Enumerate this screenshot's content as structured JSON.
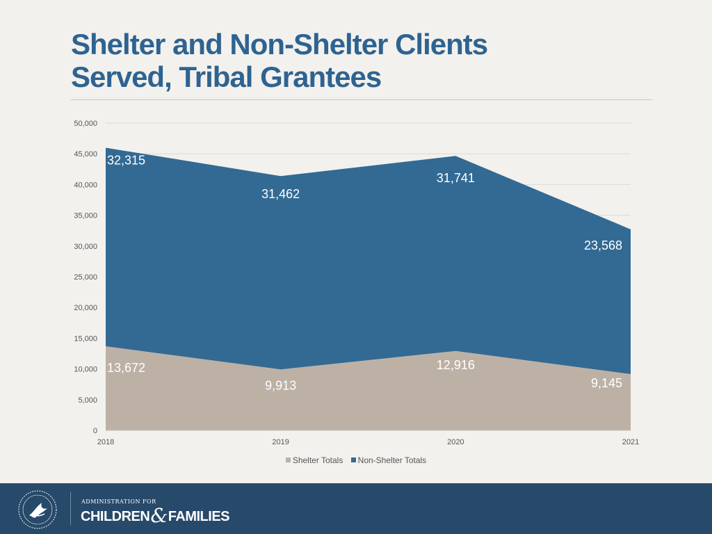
{
  "title": {
    "line1": "Shelter and Non-Shelter Clients",
    "line2": "Served, Tribal Grantees"
  },
  "colors": {
    "shelter": "#bdb1a6",
    "non_shelter": "#336a93",
    "title": "#2e6391",
    "footer": "#27496a"
  },
  "chart_data": {
    "type": "area",
    "stacked": true,
    "title": "Shelter and Non-Shelter Clients Served, Tribal Grantees",
    "categories": [
      "2018",
      "2019",
      "2020",
      "2021"
    ],
    "series": [
      {
        "name": "Shelter Totals",
        "values": [
          13672,
          9913,
          12916,
          9145
        ],
        "labels": [
          "13,672",
          "9,913",
          "12,916",
          "9,145"
        ]
      },
      {
        "name": "Non-Shelter Totals",
        "values": [
          32315,
          31462,
          31741,
          23568
        ],
        "labels": [
          "32,315",
          "31,462",
          "31,741",
          "23,568"
        ]
      }
    ],
    "ylim": [
      0,
      50000
    ],
    "yticks": [
      0,
      5000,
      10000,
      15000,
      20000,
      25000,
      30000,
      35000,
      40000,
      45000,
      50000
    ],
    "ytick_labels": [
      "0",
      "5,000",
      "10,000",
      "15,000",
      "20,000",
      "25,000",
      "30,000",
      "35,000",
      "40,000",
      "45,000",
      "50,000"
    ],
    "grid": true,
    "legend": "bottom",
    "xlabel": "",
    "ylabel": ""
  },
  "footer": {
    "agency_small": "ADMINISTRATION FOR",
    "agency_word1": "CHILDREN",
    "agency_amp": "&",
    "agency_word2": "FAMILIES"
  }
}
